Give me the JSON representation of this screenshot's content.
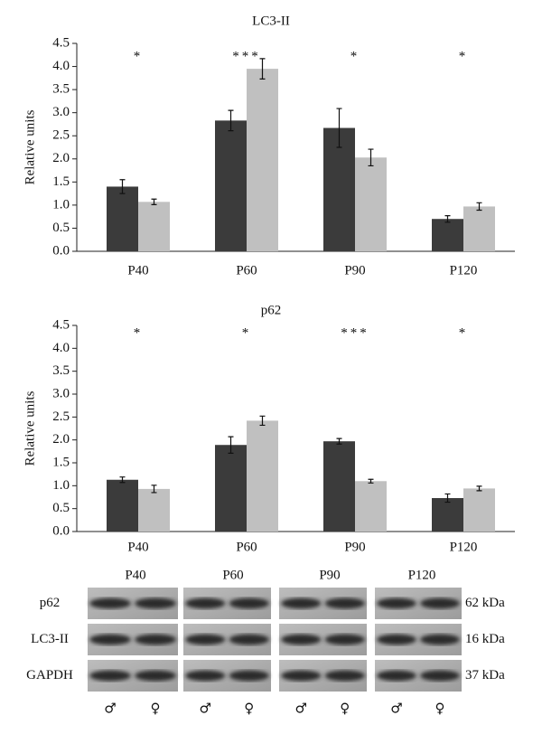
{
  "chart_data": [
    {
      "type": "bar",
      "title": "LC3-II",
      "ylabel": "Relative units",
      "categories": [
        "P40",
        "P60",
        "P90",
        "P120"
      ],
      "series": [
        {
          "color": "#3b3b3b",
          "values": [
            1.4,
            2.83,
            2.67,
            0.7
          ],
          "errors": [
            0.15,
            0.22,
            0.42,
            0.07
          ]
        },
        {
          "color": "#c0c0c0",
          "values": [
            1.07,
            3.95,
            2.03,
            0.97
          ],
          "errors": [
            0.06,
            0.22,
            0.18,
            0.08
          ]
        }
      ],
      "annotations": [
        "*",
        "***",
        "*",
        "*"
      ],
      "ylim": [
        0,
        4.5
      ],
      "yticks": [
        {
          "value": 0,
          "label": "0.0"
        },
        0.5,
        {
          "value": 1,
          "label": "1.0"
        },
        1.5,
        {
          "value": 2,
          "label": "2.0"
        },
        2.5,
        {
          "value": 3,
          "label": "3.0"
        },
        3.5,
        {
          "value": 4,
          "label": "4.0"
        },
        4.5
      ]
    },
    {
      "type": "bar",
      "title": "p62",
      "ylabel": "Relative units",
      "categories": [
        "P40",
        "P60",
        "P90",
        "P120"
      ],
      "series": [
        {
          "color": "#3b3b3b",
          "values": [
            1.13,
            1.89,
            1.97,
            0.73
          ],
          "errors": [
            0.06,
            0.18,
            0.06,
            0.09
          ]
        },
        {
          "color": "#c0c0c0",
          "values": [
            0.93,
            2.42,
            1.1,
            0.94
          ],
          "errors": [
            0.08,
            0.1,
            0.04,
            0.05
          ]
        }
      ],
      "annotations": [
        "*",
        "*",
        "***",
        "*"
      ],
      "ylim": [
        0,
        4.5
      ],
      "yticks": [
        {
          "value": 0,
          "label": "0.0"
        },
        0.5,
        {
          "value": 1,
          "label": "1.0"
        },
        1.5,
        {
          "value": 2,
          "label": "2.0"
        },
        2.5,
        {
          "value": 3,
          "label": "3.0"
        },
        3.5,
        {
          "value": 4,
          "label": "4.0"
        },
        4.5
      ]
    }
  ],
  "blot": {
    "lanes": [
      "P40",
      "P60",
      "P90",
      "P120"
    ],
    "rows": [
      {
        "label": "p62",
        "size": "62 kDa"
      },
      {
        "label": "LC3-II",
        "size": "16 kDa"
      },
      {
        "label": "GAPDH",
        "size": "37 kDa"
      }
    ],
    "sexes": [
      "♂",
      "♀",
      "♂",
      "♀",
      "♂",
      "♀",
      "♂",
      "♀"
    ]
  }
}
